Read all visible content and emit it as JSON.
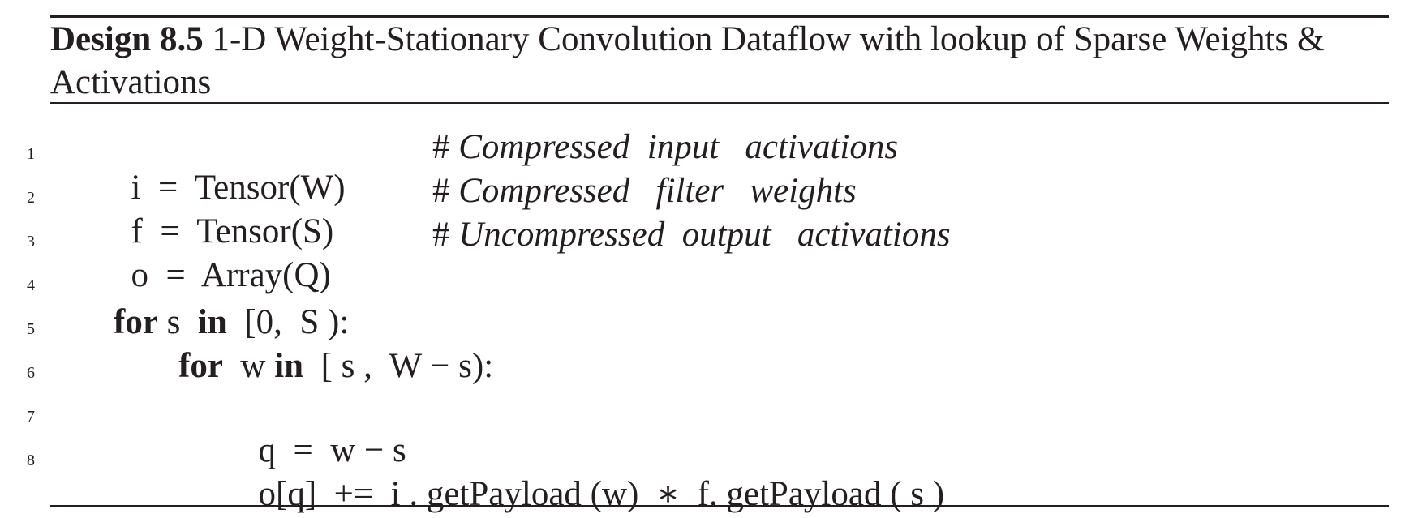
{
  "caption": {
    "label": "Design 8.5",
    "title_line1": " 1-D Weight-Stationary Convolution Dataflow with lookup of Sparse Weights &",
    "title_line2": "Activations"
  },
  "line_numbers": [
    "1",
    "2",
    "3",
    "4",
    "5",
    "6",
    "7",
    "8"
  ],
  "code": {
    "line1": {
      "stmt": "i  =  Tensor(W)",
      "comment_hash": "#",
      "comment_text": " Compressed  input   activations"
    },
    "line2": {
      "stmt": "f  =  Tensor(S)",
      "comment_hash": "#",
      "comment_text": " Compressed   filter   weights"
    },
    "line3": {
      "stmt": "o  =  Array(Q)",
      "comment_hash": "#",
      "comment_text": " Uncompressed  output   activations"
    },
    "line5": {
      "kw_for": "for",
      "var": " s  ",
      "kw_in": "in",
      "range": "  [0,  S ):"
    },
    "line6": {
      "kw_for": "for",
      "var": "  w ",
      "kw_in": "in",
      "range": "  [ s ,  W − s):"
    },
    "line7": {
      "stmt": "q  =  w − s"
    },
    "line8": {
      "stmt": "o[q]  +=  i . getPayload (w)  ∗  f. getPayload ( s )"
    }
  }
}
